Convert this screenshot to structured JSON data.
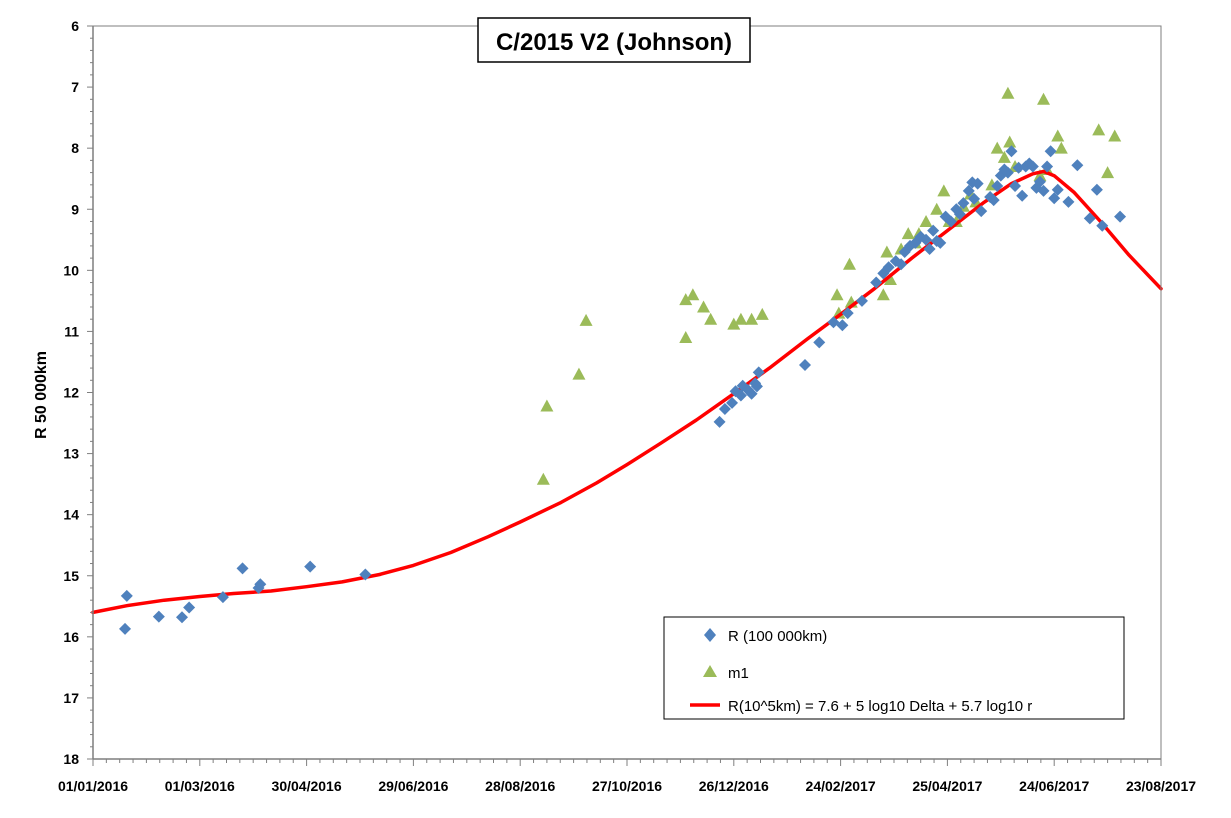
{
  "chart_data": {
    "type": "scatter",
    "title": "C/2015 V2 (Johnson)",
    "xlabel": "",
    "ylabel": "R 50 000km",
    "x_ticks": [
      "01/01/2016",
      "01/03/2016",
      "30/04/2016",
      "29/06/2016",
      "28/08/2016",
      "27/10/2016",
      "26/12/2016",
      "24/02/2017",
      "25/04/2017",
      "24/06/2017",
      "23/08/2017"
    ],
    "xlim": [
      "01/01/2016",
      "23/08/2017"
    ],
    "y_ticks": [
      6,
      7,
      8,
      9,
      10,
      11,
      12,
      13,
      14,
      15,
      16,
      17,
      18
    ],
    "ylim": [
      6,
      18
    ],
    "y_inverted": true,
    "grid": false,
    "legend_position": "bottom-right",
    "series": [
      {
        "name": "R (100 000km)",
        "kind": "scatter",
        "marker": "diamond",
        "color": "#4F81BD",
        "points": [
          [
            "2016-01-19",
            15.87
          ],
          [
            "2016-01-20",
            15.33
          ],
          [
            "2016-02-07",
            15.67
          ],
          [
            "2016-02-20",
            15.68
          ],
          [
            "2016-02-24",
            15.52
          ],
          [
            "2016-03-14",
            15.35
          ],
          [
            "2016-03-25",
            14.88
          ],
          [
            "2016-04-03",
            15.2
          ],
          [
            "2016-04-04",
            15.14
          ],
          [
            "2016-05-02",
            14.85
          ],
          [
            "2016-06-02",
            14.98
          ],
          [
            "2016-12-18",
            12.48
          ],
          [
            "2016-12-21",
            12.27
          ],
          [
            "2016-12-25",
            12.17
          ],
          [
            "2016-12-27",
            11.98
          ],
          [
            "2016-12-30",
            12.05
          ],
          [
            "2016-12-31",
            11.89
          ],
          [
            "2017-01-03",
            11.96
          ],
          [
            "2017-01-05",
            12.02
          ],
          [
            "2017-01-07",
            11.85
          ],
          [
            "2017-01-08",
            11.9
          ],
          [
            "2017-01-09",
            11.67
          ],
          [
            "2017-02-04",
            11.55
          ],
          [
            "2017-02-12",
            11.18
          ],
          [
            "2017-02-20",
            10.85
          ],
          [
            "2017-02-25",
            10.9
          ],
          [
            "2017-02-28",
            10.7
          ],
          [
            "2017-03-08",
            10.5
          ],
          [
            "2017-03-16",
            10.2
          ],
          [
            "2017-03-20",
            10.05
          ],
          [
            "2017-03-23",
            9.95
          ],
          [
            "2017-03-27",
            9.85
          ],
          [
            "2017-03-30",
            9.9
          ],
          [
            "2017-04-01",
            9.7
          ],
          [
            "2017-04-04",
            9.6
          ],
          [
            "2017-04-07",
            9.55
          ],
          [
            "2017-04-10",
            9.45
          ],
          [
            "2017-04-13",
            9.5
          ],
          [
            "2017-04-15",
            9.65
          ],
          [
            "2017-04-17",
            9.35
          ],
          [
            "2017-04-19",
            9.52
          ],
          [
            "2017-04-21",
            9.55
          ],
          [
            "2017-04-24",
            9.12
          ],
          [
            "2017-04-27",
            9.2
          ],
          [
            "2017-04-30",
            9.0
          ],
          [
            "2017-05-02",
            9.08
          ],
          [
            "2017-05-04",
            8.9
          ],
          [
            "2017-05-07",
            8.7
          ],
          [
            "2017-05-09",
            8.56
          ],
          [
            "2017-05-10",
            8.83
          ],
          [
            "2017-05-12",
            8.58
          ],
          [
            "2017-05-14",
            9.03
          ],
          [
            "2017-05-19",
            8.8
          ],
          [
            "2017-05-21",
            8.85
          ],
          [
            "2017-05-23",
            8.62
          ],
          [
            "2017-05-25",
            8.45
          ],
          [
            "2017-05-27",
            8.35
          ],
          [
            "2017-05-29",
            8.4
          ],
          [
            "2017-05-31",
            8.05
          ],
          [
            "2017-06-02",
            8.62
          ],
          [
            "2017-06-04",
            8.32
          ],
          [
            "2017-06-06",
            8.78
          ],
          [
            "2017-06-08",
            8.3
          ],
          [
            "2017-06-10",
            8.25
          ],
          [
            "2017-06-12",
            8.3
          ],
          [
            "2017-06-14",
            8.65
          ],
          [
            "2017-06-16",
            8.55
          ],
          [
            "2017-06-18",
            8.7
          ],
          [
            "2017-06-20",
            8.3
          ],
          [
            "2017-06-22",
            8.05
          ],
          [
            "2017-06-24",
            8.82
          ],
          [
            "2017-06-26",
            8.68
          ],
          [
            "2017-07-02",
            8.88
          ],
          [
            "2017-07-07",
            8.28
          ],
          [
            "2017-07-14",
            9.15
          ],
          [
            "2017-07-18",
            8.68
          ],
          [
            "2017-07-21",
            9.27
          ],
          [
            "2017-07-31",
            9.12
          ]
        ]
      },
      {
        "name": "m1",
        "kind": "scatter",
        "marker": "triangle",
        "color": "#9BBB59",
        "points": [
          [
            "2016-09-10",
            13.42
          ],
          [
            "2016-09-12",
            12.22
          ],
          [
            "2016-09-30",
            11.7
          ],
          [
            "2016-10-04",
            10.82
          ],
          [
            "2016-11-29",
            11.1
          ],
          [
            "2016-11-29",
            10.48
          ],
          [
            "2016-12-03",
            10.4
          ],
          [
            "2016-12-09",
            10.6
          ],
          [
            "2016-12-13",
            10.8
          ],
          [
            "2016-12-26",
            10.88
          ],
          [
            "2016-12-30",
            10.8
          ],
          [
            "2017-01-05",
            10.8
          ],
          [
            "2017-01-11",
            10.72
          ],
          [
            "2017-02-22",
            10.4
          ],
          [
            "2017-02-23",
            10.7
          ],
          [
            "2017-03-01",
            9.9
          ],
          [
            "2017-03-02",
            10.52
          ],
          [
            "2017-03-20",
            10.4
          ],
          [
            "2017-03-22",
            9.7
          ],
          [
            "2017-03-24",
            10.15
          ],
          [
            "2017-03-30",
            9.65
          ],
          [
            "2017-04-03",
            9.4
          ],
          [
            "2017-04-07",
            9.55
          ],
          [
            "2017-04-09",
            9.4
          ],
          [
            "2017-04-13",
            9.2
          ],
          [
            "2017-04-19",
            9.0
          ],
          [
            "2017-04-23",
            8.7
          ],
          [
            "2017-04-26",
            9.2
          ],
          [
            "2017-04-30",
            9.2
          ],
          [
            "2017-05-04",
            8.95
          ],
          [
            "2017-05-08",
            8.75
          ],
          [
            "2017-05-11",
            8.88
          ],
          [
            "2017-05-20",
            8.6
          ],
          [
            "2017-05-23",
            8.0
          ],
          [
            "2017-05-27",
            8.15
          ],
          [
            "2017-05-29",
            7.1
          ],
          [
            "2017-05-30",
            7.9
          ],
          [
            "2017-06-02",
            8.3
          ],
          [
            "2017-06-16",
            8.45
          ],
          [
            "2017-06-18",
            7.2
          ],
          [
            "2017-06-20",
            8.35
          ],
          [
            "2017-06-26",
            7.8
          ],
          [
            "2017-06-28",
            8.0
          ],
          [
            "2017-07-19",
            7.7
          ],
          [
            "2017-07-24",
            8.4
          ],
          [
            "2017-07-28",
            7.8
          ]
        ]
      },
      {
        "name": "R(10^5km) = 7.6 + 5 log10 Delta + 5.7 log10 r",
        "kind": "line",
        "color": "#FF0000",
        "points": [
          [
            "2016-01-01",
            15.6
          ],
          [
            "2016-01-20",
            15.49
          ],
          [
            "2016-02-10",
            15.4
          ],
          [
            "2016-03-01",
            15.34
          ],
          [
            "2016-03-20",
            15.29
          ],
          [
            "2016-04-10",
            15.25
          ],
          [
            "2016-04-30",
            15.18
          ],
          [
            "2016-05-20",
            15.1
          ],
          [
            "2016-06-10",
            14.98
          ],
          [
            "2016-06-29",
            14.83
          ],
          [
            "2016-07-20",
            14.62
          ],
          [
            "2016-08-10",
            14.36
          ],
          [
            "2016-08-28",
            14.12
          ],
          [
            "2016-09-20",
            13.8
          ],
          [
            "2016-10-10",
            13.48
          ],
          [
            "2016-10-27",
            13.18
          ],
          [
            "2016-11-15",
            12.83
          ],
          [
            "2016-12-05",
            12.45
          ],
          [
            "2016-12-26",
            12.02
          ],
          [
            "2017-01-15",
            11.6
          ],
          [
            "2017-02-05",
            11.13
          ],
          [
            "2017-02-24",
            10.72
          ],
          [
            "2017-03-15",
            10.3
          ],
          [
            "2017-04-05",
            9.8
          ],
          [
            "2017-04-25",
            9.35
          ],
          [
            "2017-05-15",
            8.9
          ],
          [
            "2017-05-31",
            8.58
          ],
          [
            "2017-06-12",
            8.42
          ],
          [
            "2017-06-18",
            8.38
          ],
          [
            "2017-06-24",
            8.45
          ],
          [
            "2017-07-05",
            8.72
          ],
          [
            "2017-07-20",
            9.2
          ],
          [
            "2017-08-05",
            9.75
          ],
          [
            "2017-08-23",
            10.3
          ]
        ]
      }
    ]
  }
}
